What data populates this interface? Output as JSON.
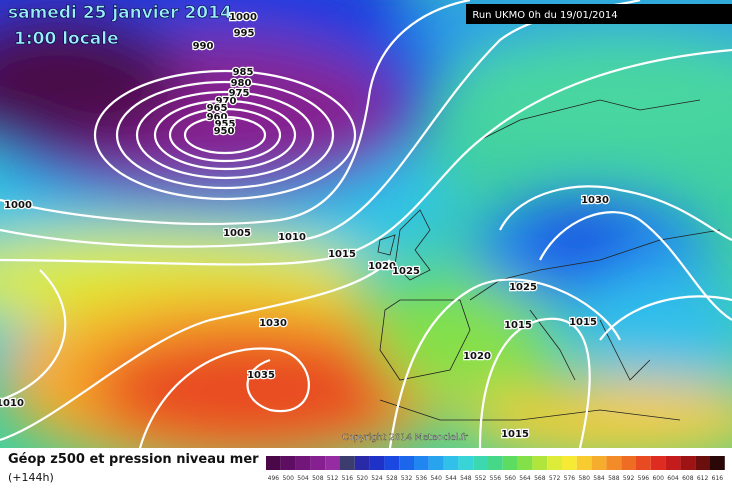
{
  "header": {
    "date": "samedi 25 janvier 2014",
    "time": "1:00 locale",
    "run": "Run UKMO 0h du 19/01/2014"
  },
  "copyright": "Copyright 2014 Meteociel.fr",
  "footer": {
    "title": "Géop z500 et pression niveau mer",
    "lead": "(+144h)"
  },
  "isobar_labels": [
    "1000",
    "995",
    "990",
    "985",
    "980",
    "975",
    "970",
    "965",
    "960",
    "955",
    "950",
    "1000",
    "1005",
    "1010",
    "1015",
    "1020",
    "1025",
    "1030",
    "1035",
    "1010",
    "1030",
    "1025",
    "1015",
    "1015",
    "1020",
    "1015"
  ],
  "scale": [
    {
      "label": "496",
      "color": "#4a0848"
    },
    {
      "label": "500",
      "color": "#5e0e62"
    },
    {
      "label": "504",
      "color": "#72167a"
    },
    {
      "label": "508",
      "color": "#862090"
    },
    {
      "label": "512",
      "color": "#962ca2"
    },
    {
      "label": "516",
      "color": "#3c3c6e"
    },
    {
      "label": "520",
      "color": "#2a2aa8"
    },
    {
      "label": "524",
      "color": "#1e32c8"
    },
    {
      "label": "528",
      "color": "#1a48e0"
    },
    {
      "label": "532",
      "color": "#1c66ec"
    },
    {
      "label": "536",
      "color": "#2086f0"
    },
    {
      "label": "540",
      "color": "#28a4ee"
    },
    {
      "label": "544",
      "color": "#30c0ea"
    },
    {
      "label": "548",
      "color": "#38d4d8"
    },
    {
      "label": "552",
      "color": "#3cd8b0"
    },
    {
      "label": "556",
      "color": "#46d888"
    },
    {
      "label": "560",
      "color": "#5cdc60"
    },
    {
      "label": "564",
      "color": "#84e048"
    },
    {
      "label": "568",
      "color": "#b0e63c"
    },
    {
      "label": "572",
      "color": "#dcec38"
    },
    {
      "label": "576",
      "color": "#f6ea34"
    },
    {
      "label": "580",
      "color": "#f8cc30"
    },
    {
      "label": "584",
      "color": "#f6ac2c"
    },
    {
      "label": "588",
      "color": "#f28c28"
    },
    {
      "label": "592",
      "color": "#ee6c24"
    },
    {
      "label": "596",
      "color": "#e84a22"
    },
    {
      "label": "600",
      "color": "#de2c20"
    },
    {
      "label": "604",
      "color": "#c41c1c"
    },
    {
      "label": "608",
      "color": "#9e1414"
    },
    {
      "label": "612",
      "color": "#6a0e0e"
    },
    {
      "label": "616",
      "color": "#2a0808"
    }
  ]
}
